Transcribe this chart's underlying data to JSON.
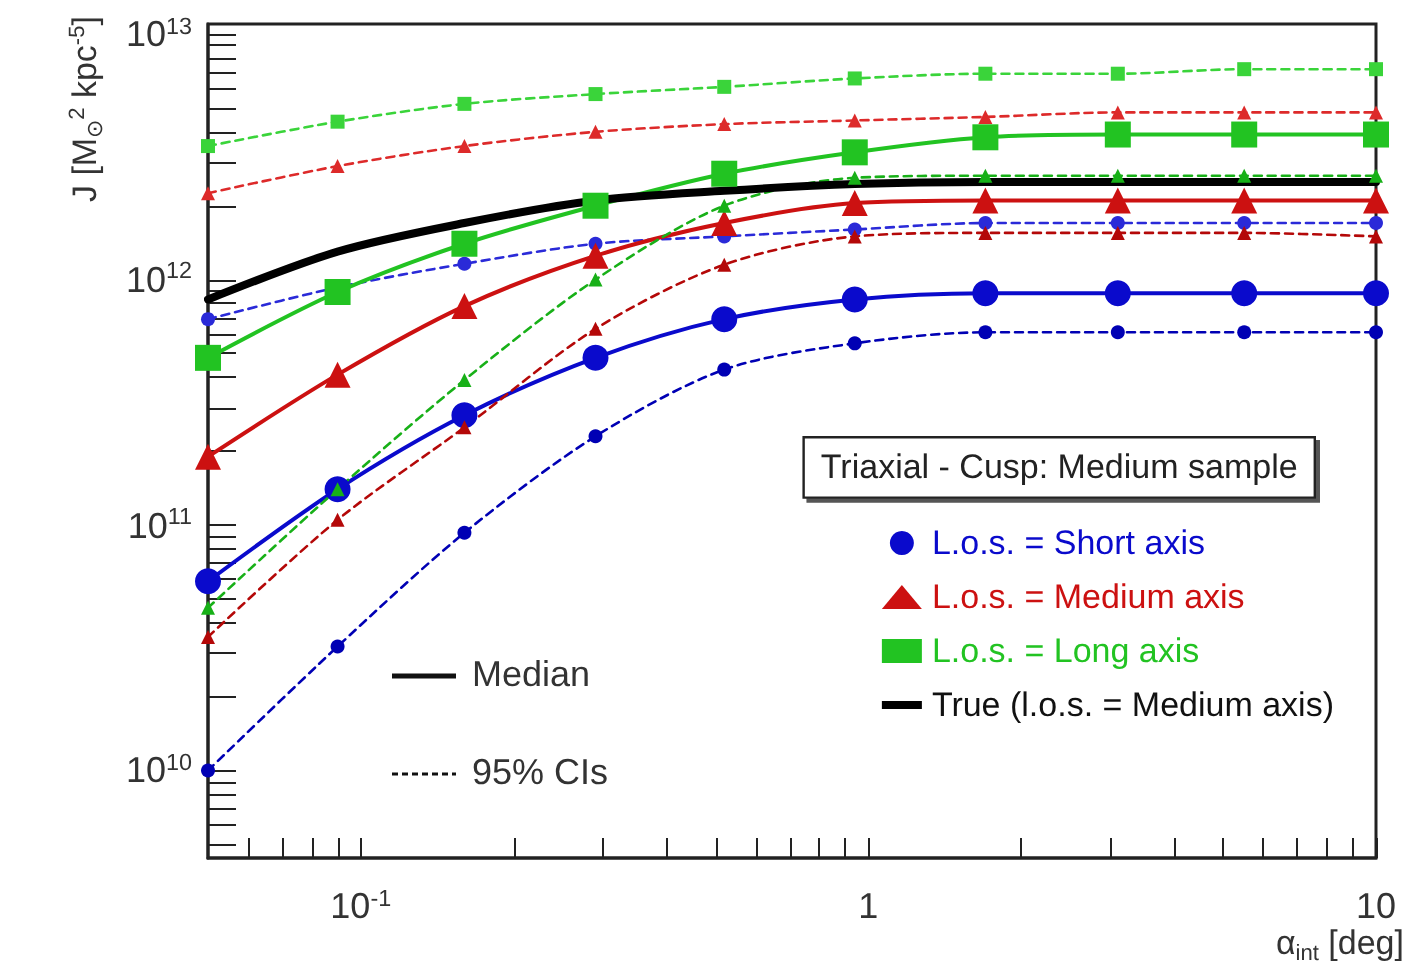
{
  "chart_data": {
    "type": "line",
    "xlabel": "α$_{int}$ [deg]",
    "ylabel": "J [M$_{⊙}$$^{2}$ kpc$^{-5}$]",
    "legend_title": "Triaxial - Cusp: Medium sample",
    "annotations": [
      "Median",
      "95% CIs"
    ],
    "x": [
      0.05,
      0.09,
      0.16,
      0.29,
      0.52,
      0.94,
      1.7,
      3.1,
      5.5,
      10
    ],
    "log": "xy",
    "grid": false,
    "legend": "right",
    "xlim": [
      0.05,
      10
    ],
    "ylim": [
      4400000000.0,
      11000000000000.0
    ],
    "xticks": [
      {
        "value": 0.06,
        "label": null
      },
      {
        "value": 0.07,
        "label": null
      },
      {
        "value": 0.08,
        "label": null
      },
      {
        "value": 0.09,
        "label": null
      },
      {
        "value": 0.1,
        "label": "10$^{-1}$"
      },
      {
        "value": 0.2,
        "label": null
      },
      {
        "value": 0.3,
        "label": null
      },
      {
        "value": 0.4,
        "label": null
      },
      {
        "value": 0.5,
        "label": null
      },
      {
        "value": 0.6,
        "label": null
      },
      {
        "value": 0.7,
        "label": null
      },
      {
        "value": 0.8,
        "label": null
      },
      {
        "value": 0.9,
        "label": null
      },
      1,
      {
        "value": 2,
        "label": null
      },
      {
        "value": 3,
        "label": null
      },
      {
        "value": 4,
        "label": null
      },
      {
        "value": 5,
        "label": null
      },
      {
        "value": 6,
        "label": null
      },
      {
        "value": 7,
        "label": null
      },
      {
        "value": 8,
        "label": null
      },
      {
        "value": 9,
        "label": null
      },
      10
    ],
    "yticks": [
      {
        "value": 5000000000.0,
        "label": null
      },
      {
        "value": 6000000000.0,
        "label": null
      },
      {
        "value": 7000000000.0,
        "label": null
      },
      {
        "value": 8000000000.0,
        "label": null
      },
      {
        "value": 9000000000.0,
        "label": null
      },
      {
        "value": 10000000000.0,
        "label": "10$^{10}$"
      },
      {
        "value": 20000000000.0,
        "label": null
      },
      {
        "value": 30000000000.0,
        "label": null
      },
      {
        "value": 40000000000.0,
        "label": null
      },
      {
        "value": 50000000000.0,
        "label": null
      },
      {
        "value": 60000000000.0,
        "label": null
      },
      {
        "value": 70000000000.0,
        "label": null
      },
      {
        "value": 80000000000.0,
        "label": null
      },
      {
        "value": 90000000000.0,
        "label": null
      },
      {
        "value": 100000000000.0,
        "label": "10$^{11}$"
      },
      {
        "value": 200000000000.0,
        "label": null
      },
      {
        "value": 300000000000.0,
        "label": null
      },
      {
        "value": 400000000000.0,
        "label": null
      },
      {
        "value": 500000000000.0,
        "label": null
      },
      {
        "value": 600000000000.0,
        "label": null
      },
      {
        "value": 700000000000.0,
        "label": null
      },
      {
        "value": 800000000000.0,
        "label": null
      },
      {
        "value": 900000000000.0,
        "label": null
      },
      {
        "value": 1000000000000.0,
        "label": "10$^{12}$"
      },
      {
        "value": 2000000000000.0,
        "label": null
      },
      {
        "value": 3000000000000.0,
        "label": null
      },
      {
        "value": 4000000000000.0,
        "label": null
      },
      {
        "value": 5000000000000.0,
        "label": null
      },
      {
        "value": 6000000000000.0,
        "label": null
      },
      {
        "value": 7000000000000.0,
        "label": null
      },
      {
        "value": 8000000000000.0,
        "label": null
      },
      {
        "value": 9000000000000.0,
        "label": null
      },
      {
        "value": 10000000000000.0,
        "label": "10$^{13}$"
      }
    ],
    "series": [
      {
        "name": "L.o.s. = Short axis",
        "color": "#0a0acc",
        "marker": "circle",
        "line_style": "solid",
        "values": [
          59000000000.0,
          140000000000.0,
          280000000000.0,
          480000000000.0,
          690000000000.0,
          830000000000.0,
          880000000000.0,
          880000000000.0,
          880000000000.0,
          880000000000.0
        ]
      },
      {
        "color": "#2a2ad8",
        "marker": "circle",
        "line_style": "dashed",
        "values": [
          690000000000.0,
          930000000000.0,
          1160000000000.0,
          1400000000000.0,
          1500000000000.0,
          1600000000000.0,
          1700000000000.0,
          1700000000000.0,
          1700000000000.0,
          1700000000000.0
        ]
      },
      {
        "color": "#0000b4",
        "marker": "circle",
        "line_style": "dashed",
        "values": [
          10000000000.0,
          32000000000.0,
          93000000000.0,
          230000000000.0,
          430000000000.0,
          550000000000.0,
          610000000000.0,
          610000000000.0,
          610000000000.0,
          610000000000.0
        ]
      },
      {
        "name": "L.o.s. = Medium axis",
        "color": "#cc1111",
        "marker": "triangle",
        "line_style": "solid",
        "values": [
          190000000000.0,
          410000000000.0,
          780000000000.0,
          1250000000000.0,
          1700000000000.0,
          2050000000000.0,
          2100000000000.0,
          2100000000000.0,
          2100000000000.0,
          2100000000000.0
        ]
      },
      {
        "color": "#dd2a2a",
        "marker": "triangle",
        "line_style": "dashed",
        "values": [
          2250000000000.0,
          2900000000000.0,
          3500000000000.0,
          4000000000000.0,
          4300000000000.0,
          4450000000000.0,
          4600000000000.0,
          4800000000000.0,
          4800000000000.0,
          4800000000000.0
        ]
      },
      {
        "color": "#b40808",
        "marker": "triangle",
        "line_style": "dashed",
        "values": [
          35000000000.0,
          105000000000.0,
          250000000000.0,
          630000000000.0,
          1150000000000.0,
          1500000000000.0,
          1550000000000.0,
          1550000000000.0,
          1550000000000.0,
          1500000000000.0
        ]
      },
      {
        "name": "L.o.s. = Long axis",
        "color": "#22c322",
        "marker": "square",
        "line_style": "solid",
        "values": [
          480000000000.0,
          890000000000.0,
          1400000000000.0,
          2000000000000.0,
          2700000000000.0,
          3300000000000.0,
          3800000000000.0,
          3900000000000.0,
          3900000000000.0,
          3900000000000.0
        ]
      },
      {
        "color": "#3ad43a",
        "marker": "square",
        "line_style": "dashed",
        "values": [
          3500000000000.0,
          4400000000000.0,
          5200000000000.0,
          5700000000000.0,
          6100000000000.0,
          6600000000000.0,
          6900000000000.0,
          6900000000000.0,
          7200000000000.0,
          7200000000000.0
        ]
      },
      {
        "color": "#18b018",
        "marker": "triangle",
        "line_style": "dashed",
        "values": [
          46000000000.0,
          140000000000.0,
          390000000000.0,
          1000000000000.0,
          2000000000000.0,
          2600000000000.0,
          2650000000000.0,
          2650000000000.0,
          2650000000000.0,
          2650000000000.0
        ]
      },
      {
        "name": "True (l.o.s. = Medium axis)",
        "color": "#000000",
        "marker": "none",
        "line_style": "solid",
        "values": [
          830000000000.0,
          1300000000000.0,
          1700000000000.0,
          2100000000000.0,
          2300000000000.0,
          2450000000000.0,
          2500000000000.0,
          2500000000000.0,
          2500000000000.0,
          2500000000000.0
        ]
      }
    ]
  }
}
